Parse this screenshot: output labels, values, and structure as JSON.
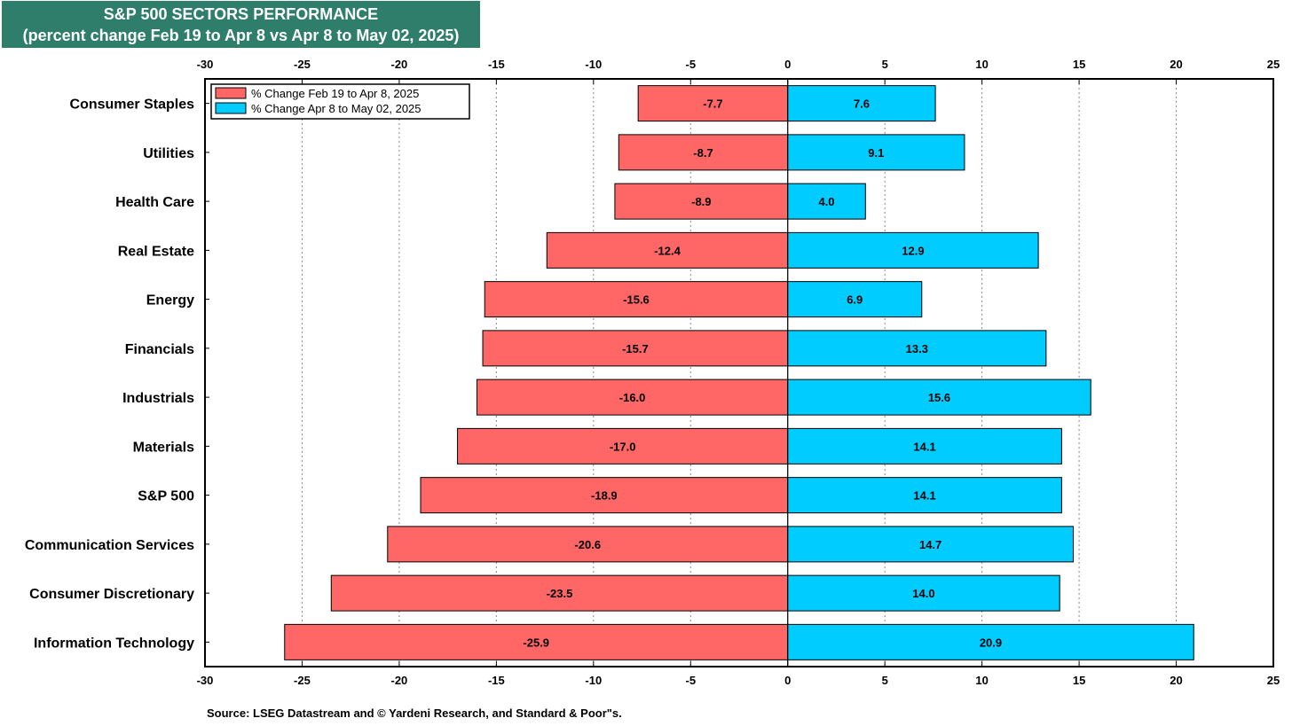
{
  "chart_data": {
    "type": "bar",
    "orientation": "horizontal",
    "title": "S&P 500 SECTORS PERFORMANCE",
    "subtitle": "(percent change Feb 19 to Apr 8 vs Apr 8 to May 02, 2025)",
    "xlim": [
      -30,
      25
    ],
    "xticks": [
      -30,
      -25,
      -20,
      -15,
      -10,
      -5,
      0,
      5,
      10,
      15,
      20,
      25
    ],
    "grid": "vertical-dotted",
    "legend_position": "top-left",
    "categories": [
      "Consumer Staples",
      "Utilities",
      "Health Care",
      "Real Estate",
      "Energy",
      "Financials",
      "Industrials",
      "Materials",
      "S&P 500",
      "Communication Services",
      "Consumer Discretionary",
      "Information Technology"
    ],
    "series": [
      {
        "name": "% Change Feb 19 to Apr 8, 2025",
        "color": "#ff6666",
        "values": [
          -7.7,
          -8.7,
          -8.9,
          -12.4,
          -15.6,
          -15.7,
          -16.0,
          -17.0,
          -18.9,
          -20.6,
          -23.5,
          -25.9
        ],
        "labels": [
          "-7.7",
          "-8.7",
          "-8.9",
          "-12.4",
          "-15.6",
          "-15.7",
          "-16.0",
          "-17.0",
          "-18.9",
          "-20.6",
          "-23.5",
          "-25.9"
        ]
      },
      {
        "name": "% Change Apr 8 to May 02, 2025",
        "color": "#00ccff",
        "values": [
          7.6,
          9.1,
          4.0,
          12.9,
          6.9,
          13.3,
          15.6,
          14.1,
          14.1,
          14.7,
          14.0,
          20.9
        ],
        "labels": [
          "7.6",
          "9.1",
          "4.0",
          "12.9",
          "6.9",
          "13.3",
          "15.6",
          "14.1",
          "14.1",
          "14.7",
          "14.0",
          "20.9"
        ]
      }
    ],
    "source": "Source: LSEG Datastream and © Yardeni Research, and Standard & Poor\"s."
  }
}
